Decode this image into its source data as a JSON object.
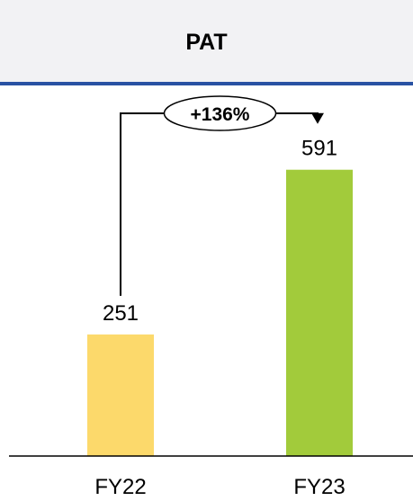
{
  "chart_data": {
    "type": "bar",
    "title": "PAT",
    "categories": [
      "FY22",
      "FY23"
    ],
    "values": [
      251,
      591
    ],
    "value_labels": [
      "251",
      "591"
    ],
    "colors": [
      "#fcd96b",
      "#a2cb3b"
    ],
    "growth_label": "+136%",
    "ylim": [
      0,
      700
    ],
    "grid": false,
    "legend": "none"
  }
}
